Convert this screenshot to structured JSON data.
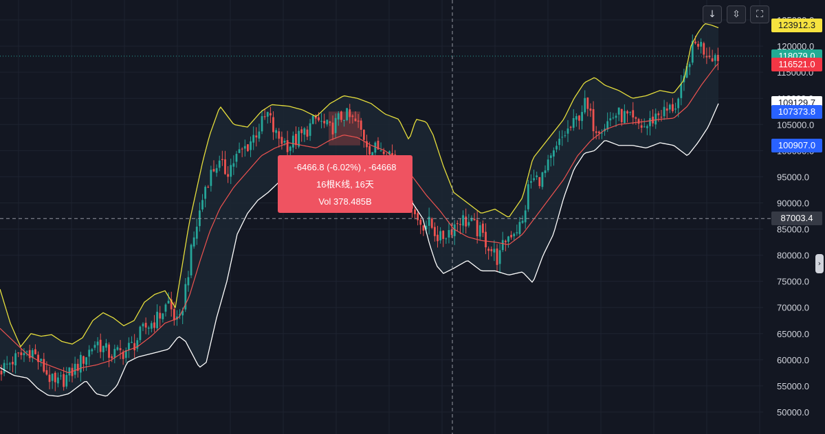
{
  "toolbar": {
    "download_icon": "arrow-down",
    "collapse_icon": "collapse-chevrons",
    "fullscreen_icon": "fullscreen-corners"
  },
  "chart_data": {
    "type": "candlestick",
    "instrument_note": "",
    "ylim": [
      48500,
      126500
    ],
    "y_ticks": [
      "50000.0",
      "55000.0",
      "60000.0",
      "65000.0",
      "70000.0",
      "75000.0",
      "80000.0",
      "85000.0",
      "90000.0",
      "95000.0",
      "100000.0",
      "105000.0",
      "110000.0",
      "115000.0",
      "120000.0",
      "125000.0"
    ],
    "price_labels": [
      {
        "value": "123912.3",
        "bg": "#f6e33f",
        "fg": "#131722"
      },
      {
        "value": "118079.0",
        "bg": "#22ab94",
        "fg": "#ffffff"
      },
      {
        "value": "116521.0",
        "bg": "#f23645",
        "fg": "#ffffff"
      },
      {
        "value": "109129.7",
        "bg": "#ffffff",
        "fg": "#131722"
      },
      {
        "value": "107373.8",
        "bg": "#2962ff",
        "fg": "#ffffff"
      },
      {
        "value": "100907.0",
        "bg": "#2962ff",
        "fg": "#ffffff"
      },
      {
        "value": "87003.4",
        "bg": "#363a45",
        "fg": "#ffffff"
      }
    ],
    "crosshair_price": 87003.4,
    "last_price": 118079.0,
    "colors": {
      "up": "#26a69a",
      "down": "#ef5350",
      "upper_band": "#e6de3c",
      "lower_band": "#ffffff",
      "middle_band": "#ef5350",
      "band_fill": "#1c2733",
      "measure_box": "#ef5350"
    },
    "bollinger_upper_anchors": [
      [
        0,
        73500
      ],
      [
        15,
        67000
      ],
      [
        30,
        62500
      ],
      [
        45,
        65000
      ],
      [
        60,
        64500
      ],
      [
        75,
        64800
      ],
      [
        90,
        63500
      ],
      [
        105,
        63000
      ],
      [
        120,
        64200
      ],
      [
        135,
        67500
      ],
      [
        150,
        69000
      ],
      [
        165,
        68000
      ],
      [
        180,
        66500
      ],
      [
        195,
        67500
      ],
      [
        210,
        71000
      ],
      [
        225,
        72500
      ],
      [
        240,
        73200
      ],
      [
        255,
        70000
      ],
      [
        265,
        78000
      ],
      [
        275,
        86000
      ],
      [
        285,
        92000
      ],
      [
        295,
        98000
      ],
      [
        305,
        103000
      ],
      [
        320,
        108500
      ],
      [
        340,
        105000
      ],
      [
        360,
        104500
      ],
      [
        380,
        107500
      ],
      [
        395,
        108800
      ],
      [
        420,
        108500
      ],
      [
        440,
        107800
      ],
      [
        460,
        106500
      ],
      [
        480,
        109000
      ],
      [
        500,
        110500
      ],
      [
        520,
        110000
      ],
      [
        540,
        109000
      ],
      [
        560,
        107000
      ],
      [
        580,
        106000
      ],
      [
        595,
        102000
      ],
      [
        605,
        106000
      ],
      [
        620,
        105500
      ],
      [
        630,
        103000
      ],
      [
        645,
        97000
      ],
      [
        660,
        92000
      ],
      [
        680,
        90000
      ],
      [
        700,
        88000
      ],
      [
        720,
        88800
      ],
      [
        740,
        87200
      ],
      [
        760,
        91000
      ],
      [
        775,
        98500
      ],
      [
        790,
        101000
      ],
      [
        805,
        103500
      ],
      [
        820,
        106000
      ],
      [
        835,
        110000
      ],
      [
        850,
        113000
      ],
      [
        865,
        114000
      ],
      [
        880,
        112500
      ],
      [
        900,
        111500
      ],
      [
        920,
        110000
      ],
      [
        940,
        110500
      ],
      [
        960,
        111500
      ],
      [
        980,
        111000
      ],
      [
        995,
        113500
      ],
      [
        1005,
        120000
      ],
      [
        1015,
        122500
      ],
      [
        1025,
        124300
      ],
      [
        1035,
        124000
      ],
      [
        1045,
        123500
      ]
    ],
    "bollinger_lower_anchors": [
      [
        0,
        58500
      ],
      [
        20,
        57000
      ],
      [
        40,
        56500
      ],
      [
        55,
        54500
      ],
      [
        70,
        53200
      ],
      [
        85,
        53000
      ],
      [
        100,
        53500
      ],
      [
        115,
        55000
      ],
      [
        125,
        56000
      ],
      [
        140,
        53500
      ],
      [
        155,
        53000
      ],
      [
        170,
        55000
      ],
      [
        185,
        59500
      ],
      [
        200,
        60500
      ],
      [
        215,
        61000
      ],
      [
        230,
        61500
      ],
      [
        245,
        62000
      ],
      [
        260,
        64500
      ],
      [
        270,
        63500
      ],
      [
        280,
        61000
      ],
      [
        290,
        58500
      ],
      [
        300,
        59500
      ],
      [
        315,
        68000
      ],
      [
        330,
        75000
      ],
      [
        345,
        84000
      ],
      [
        360,
        88000
      ],
      [
        375,
        90500
      ],
      [
        390,
        92000
      ],
      [
        410,
        94500
      ],
      [
        430,
        97000
      ],
      [
        450,
        95000
      ],
      [
        470,
        93000
      ],
      [
        490,
        95000
      ],
      [
        510,
        96500
      ],
      [
        530,
        95500
      ],
      [
        550,
        95500
      ],
      [
        570,
        94000
      ],
      [
        585,
        91000
      ],
      [
        600,
        90000
      ],
      [
        615,
        87000
      ],
      [
        625,
        82000
      ],
      [
        635,
        78000
      ],
      [
        645,
        76500
      ],
      [
        660,
        77500
      ],
      [
        680,
        79000
      ],
      [
        700,
        77000
      ],
      [
        720,
        77000
      ],
      [
        740,
        76200
      ],
      [
        760,
        76800
      ],
      [
        775,
        74700
      ],
      [
        790,
        80000
      ],
      [
        805,
        84000
      ],
      [
        820,
        91000
      ],
      [
        835,
        96500
      ],
      [
        850,
        99500
      ],
      [
        865,
        100000
      ],
      [
        880,
        102000
      ],
      [
        900,
        101000
      ],
      [
        920,
        101000
      ],
      [
        940,
        100500
      ],
      [
        960,
        101500
      ],
      [
        980,
        101000
      ],
      [
        1000,
        99000
      ],
      [
        1015,
        101500
      ],
      [
        1030,
        104500
      ],
      [
        1045,
        109000
      ]
    ],
    "bollinger_middle_anchors": [
      [
        0,
        66000
      ],
      [
        20,
        63500
      ],
      [
        40,
        61000
      ],
      [
        60,
        59500
      ],
      [
        80,
        58500
      ],
      [
        100,
        57500
      ],
      [
        120,
        58500
      ],
      [
        140,
        59000
      ],
      [
        160,
        59800
      ],
      [
        180,
        61500
      ],
      [
        200,
        62500
      ],
      [
        220,
        64500
      ],
      [
        240,
        67000
      ],
      [
        260,
        68000
      ],
      [
        275,
        72000
      ],
      [
        290,
        78500
      ],
      [
        305,
        84500
      ],
      [
        320,
        89000
      ],
      [
        340,
        93000
      ],
      [
        360,
        96000
      ],
      [
        380,
        99000
      ],
      [
        400,
        100500
      ],
      [
        420,
        101500
      ],
      [
        440,
        101000
      ],
      [
        460,
        100500
      ],
      [
        480,
        102000
      ],
      [
        500,
        103000
      ],
      [
        520,
        102500
      ],
      [
        540,
        101000
      ],
      [
        560,
        100000
      ],
      [
        580,
        98000
      ],
      [
        600,
        95000
      ],
      [
        620,
        91500
      ],
      [
        640,
        88500
      ],
      [
        660,
        85000
      ],
      [
        680,
        83500
      ],
      [
        700,
        82800
      ],
      [
        720,
        82500
      ],
      [
        740,
        82000
      ],
      [
        760,
        84000
      ],
      [
        780,
        87500
      ],
      [
        800,
        91000
      ],
      [
        820,
        94500
      ],
      [
        840,
        99000
      ],
      [
        860,
        102000
      ],
      [
        880,
        104000
      ],
      [
        900,
        105000
      ],
      [
        920,
        105300
      ],
      [
        940,
        105600
      ],
      [
        960,
        106000
      ],
      [
        980,
        106200
      ],
      [
        1000,
        108500
      ],
      [
        1020,
        112500
      ],
      [
        1040,
        116000
      ],
      [
        1045,
        116700
      ]
    ],
    "price_path_anchors": [
      [
        0,
        58000
      ],
      [
        20,
        60000
      ],
      [
        45,
        62000
      ],
      [
        65,
        58000
      ],
      [
        80,
        55000
      ],
      [
        100,
        57000
      ],
      [
        120,
        60000
      ],
      [
        140,
        63500
      ],
      [
        160,
        61000
      ],
      [
        180,
        61500
      ],
      [
        195,
        63000
      ],
      [
        210,
        66000
      ],
      [
        230,
        68000
      ],
      [
        245,
        71000
      ],
      [
        260,
        66000
      ],
      [
        270,
        74000
      ],
      [
        280,
        82000
      ],
      [
        290,
        88000
      ],
      [
        300,
        94000
      ],
      [
        315,
        97500
      ],
      [
        330,
        96000
      ],
      [
        345,
        99000
      ],
      [
        360,
        101000
      ],
      [
        375,
        104000
      ],
      [
        390,
        107000
      ],
      [
        400,
        103000
      ],
      [
        420,
        101000
      ],
      [
        440,
        103000
      ],
      [
        460,
        106000
      ],
      [
        480,
        104000
      ],
      [
        500,
        107000
      ],
      [
        520,
        105000
      ],
      [
        540,
        100000
      ],
      [
        560,
        101000
      ],
      [
        580,
        97000
      ],
      [
        595,
        92000
      ],
      [
        605,
        87000
      ],
      [
        615,
        86000
      ],
      [
        625,
        86000
      ],
      [
        640,
        83000
      ],
      [
        655,
        85000
      ],
      [
        670,
        87000
      ],
      [
        685,
        86000
      ],
      [
        700,
        84000
      ],
      [
        715,
        81000
      ],
      [
        725,
        79000
      ],
      [
        735,
        83000
      ],
      [
        745,
        84500
      ],
      [
        760,
        86000
      ],
      [
        770,
        94000
      ],
      [
        790,
        95000
      ],
      [
        805,
        99000
      ],
      [
        820,
        103000
      ],
      [
        835,
        105000
      ],
      [
        850,
        109000
      ],
      [
        865,
        104500
      ],
      [
        880,
        105000
      ],
      [
        895,
        107000
      ],
      [
        910,
        106500
      ],
      [
        925,
        105000
      ],
      [
        940,
        104500
      ],
      [
        955,
        107000
      ],
      [
        970,
        107500
      ],
      [
        985,
        109000
      ],
      [
        995,
        113000
      ],
      [
        1005,
        119000
      ],
      [
        1015,
        121000
      ],
      [
        1025,
        119000
      ],
      [
        1035,
        118500
      ],
      [
        1045,
        118000
      ]
    ],
    "measure_box": {
      "from_price": 107470,
      "to_price": 101003,
      "change": "-6466.8 (-6.02%) , -64668",
      "bars": "16根K线, 16天",
      "volume": "Vol 378.485B"
    },
    "crosshair_x_index": 658
  },
  "tooltip": {
    "line1": "-6466.8 (-6.02%) , -64668",
    "line2": "16根K线, 16天",
    "line3": "Vol 378.485B"
  },
  "side_handle_icon": "chevron-right"
}
